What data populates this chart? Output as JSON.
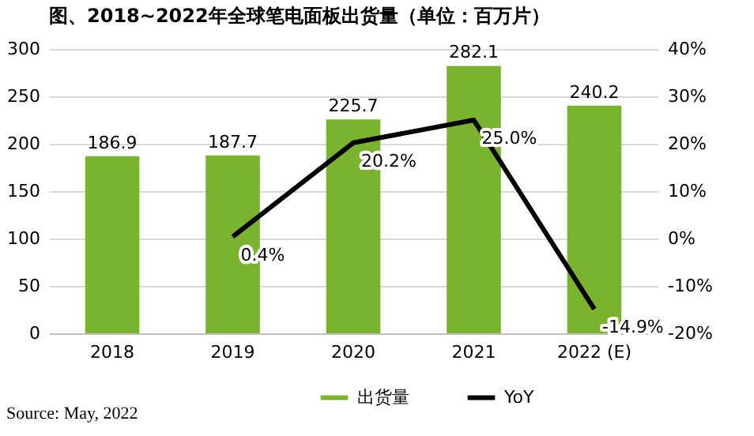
{
  "chart_data": {
    "type": "bar",
    "title": "图、2018~2022年全球笔电面板出货量（单位：百万片）",
    "categories": [
      "2018",
      "2019",
      "2020",
      "2021",
      "2022 (E)"
    ],
    "series": [
      {
        "name": "出货量",
        "color": "#7ab32e",
        "values": [
          186.9,
          187.7,
          225.7,
          282.1,
          240.2
        ],
        "value_labels": [
          "186.9",
          "187.7",
          "225.7",
          "282.1",
          "240.2"
        ]
      },
      {
        "name": "YoY",
        "type": "line",
        "axis": "y2",
        "color": "#000000",
        "values": [
          null,
          0.4,
          20.2,
          25.0,
          -14.9
        ],
        "value_labels": [
          null,
          "0.4%",
          "20.2%",
          "25.0%",
          "-14.9%"
        ]
      }
    ],
    "ylim": [
      0,
      300
    ],
    "yticks": [
      0,
      50,
      100,
      150,
      200,
      250,
      300
    ],
    "y2lim": [
      -20,
      40
    ],
    "y2ticks": [
      {
        "value": -20,
        "label": "-20%"
      },
      {
        "value": -10,
        "label": "-10%"
      },
      {
        "value": 0,
        "label": "0%"
      },
      {
        "value": 10,
        "label": "10%"
      },
      {
        "value": 20,
        "label": "20%"
      },
      {
        "value": 30,
        "label": "30%"
      },
      {
        "value": 40,
        "label": "40%"
      }
    ],
    "grid": "y",
    "legend": "bottom",
    "marker": "none",
    "line_style": "solid",
    "annotations": [
      "Source: May, 2022"
    ]
  }
}
